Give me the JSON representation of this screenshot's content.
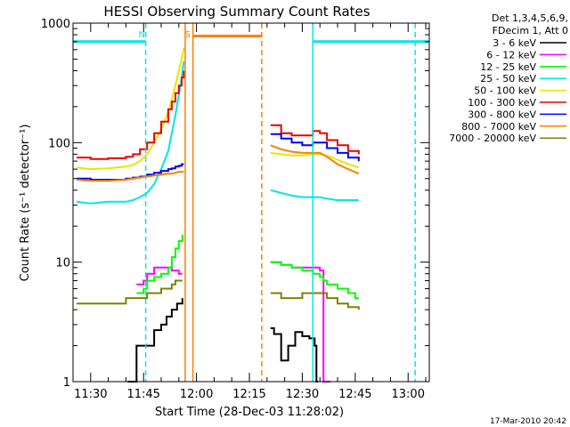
{
  "chart_data": {
    "type": "line",
    "title": "HESSI Observing Summary Count Rates",
    "xlabel": "Start Time (28-Dec-03 11:28:02)",
    "ylabel": "Count Rate (s⁻¹ detector⁻¹)",
    "y_scale": "log",
    "ylim": [
      1,
      1000
    ],
    "yticks": [
      1,
      10,
      100,
      1000
    ],
    "ytick_labels": [
      "1",
      "10",
      "100",
      "1000"
    ],
    "xlim_minutes": [
      685,
      786
    ],
    "xticks_minutes": [
      690,
      705,
      720,
      735,
      750,
      765,
      780
    ],
    "xtick_labels": [
      "11:30",
      "11:45",
      "12:00",
      "12:15",
      "12:30",
      "12:45",
      "13:00"
    ],
    "grid": false,
    "legend_position": "right",
    "legend_header": [
      "Det 1,3,4,5,6,9,",
      "FDecim 1, Att 0"
    ],
    "footer": "17-Mar-2010 20:42",
    "annotations": [
      {
        "text": "N",
        "x_minutes": 704.5,
        "color": "#00e6e6"
      },
      {
        "text": "S",
        "x_minutes": 717.5,
        "color": "#ff7f00"
      }
    ],
    "markers": [
      {
        "type": "night",
        "color": "#00e6e6",
        "x_minutes": 705.6,
        "style": "dashed"
      },
      {
        "type": "night",
        "color": "#00e6e6",
        "x_minutes": 753.0,
        "style": "solid"
      },
      {
        "type": "night",
        "color": "#00e6e6",
        "x_minutes": 782.0,
        "style": "dashed"
      },
      {
        "type": "saa",
        "color": "#ff7f00",
        "x_minutes": 716.8,
        "style": "solid"
      },
      {
        "type": "saa",
        "color": "#ff7f00",
        "x_minutes": 719.0,
        "style": "solid"
      },
      {
        "type": "saa",
        "color": "#ff7f00",
        "x_minutes": 738.5,
        "style": "dashed"
      }
    ],
    "bars": [
      {
        "color": "#00e6e6",
        "y": 700,
        "from_minutes": 685,
        "to_minutes": 705.6
      },
      {
        "color": "#00e6e6",
        "y": 700,
        "from_minutes": 753.0,
        "to_minutes": 786
      },
      {
        "color": "#ff7f00",
        "y": 780,
        "from_minutes": 719.0,
        "to_minutes": 738.5
      }
    ],
    "series": [
      {
        "name": "3 - 6 keV",
        "color": "#000000",
        "stepped": true,
        "segments": [
          {
            "x": [
              700.5,
              703,
              706,
              708,
              710,
              711.5,
              713,
              714.5,
              716
            ],
            "y": [
              1,
              2,
              2,
              2.7,
              3,
              3.5,
              4,
              4.5,
              5
            ]
          },
          {
            "x": [
              741,
              742,
              744,
              746,
              748,
              750,
              752,
              753.5,
              754,
              754.5
            ],
            "y": [
              2.8,
              2.5,
              1.5,
              2,
              2.6,
              2.4,
              2.3,
              2,
              1,
              1
            ]
          }
        ]
      },
      {
        "name": "6 - 12 keV",
        "color": "#ff00ff",
        "stepped": true,
        "segments": [
          {
            "x": [
              703,
              705,
              706,
              708,
              711,
              713,
              715,
              716
            ],
            "y": [
              6.5,
              7,
              8,
              9,
              9,
              8.5,
              8,
              8
            ]
          },
          {
            "x": [
              741,
              744,
              747,
              750,
              753,
              755,
              756,
              757,
              758
            ],
            "y": [
              10,
              9.5,
              9,
              9,
              9,
              8.5,
              1,
              1,
              1
            ]
          }
        ]
      },
      {
        "name": "12 - 25 keV",
        "color": "#00ff00",
        "stepped": true,
        "segments": [
          {
            "x": [
              703,
              705,
              706,
              708,
              710,
              712,
              713,
              714,
              715,
              716
            ],
            "y": [
              5.5,
              6,
              7,
              7.5,
              8,
              9,
              11,
              13,
              15,
              17
            ]
          },
          {
            "x": [
              741,
              744,
              747,
              750,
              753,
              755,
              756,
              757,
              760,
              763,
              765,
              766
            ],
            "y": [
              10,
              9.5,
              9,
              8.5,
              8,
              7.5,
              7,
              6.5,
              6,
              5.5,
              5,
              5
            ]
          }
        ]
      },
      {
        "name": "25 - 50 keV",
        "color": "#00e6e6",
        "stepped": false,
        "segments": [
          {
            "x": [
              686,
              690,
              695,
              700,
              702,
              704,
              706,
              708,
              710,
              712,
              713,
              714,
              715,
              715.8,
              716.4
            ],
            "y": [
              32,
              31,
              32,
              32,
              33,
              35,
              38,
              45,
              60,
              85,
              120,
              170,
              250,
              350,
              480
            ]
          },
          {
            "x": [
              741,
              744,
              747,
              750,
              753,
              755,
              757,
              760,
              763,
              766
            ],
            "y": [
              40,
              38,
              36,
              35,
              35,
              35,
              34,
              33,
              33,
              33
            ]
          }
        ]
      },
      {
        "name": "50 - 100 keV",
        "color": "#e6e600",
        "stepped": false,
        "segments": [
          {
            "x": [
              686,
              690,
              695,
              700,
              702,
              704,
              706,
              708,
              710,
              712,
              713,
              714,
              715,
              715.8,
              716.4
            ],
            "y": [
              62,
              60,
              61,
              63,
              65,
              70,
              80,
              100,
              130,
              180,
              230,
              300,
              400,
              500,
              620
            ]
          },
          {
            "x": [
              741,
              744,
              747,
              750,
              753,
              755,
              757,
              760,
              763,
              766
            ],
            "y": [
              82,
              80,
              78,
              78,
              80,
              80,
              78,
              72,
              66,
              62
            ]
          }
        ]
      },
      {
        "name": "100 - 300 keV",
        "color": "#ee0000",
        "stepped": true,
        "segments": [
          {
            "x": [
              686,
              690,
              695,
              700,
              702,
              704,
              706,
              708,
              710,
              712,
              713,
              714,
              715,
              715.8,
              716.4
            ],
            "y": [
              75,
              73,
              74,
              76,
              80,
              88,
              100,
              120,
              150,
              190,
              220,
              260,
              300,
              350,
              400
            ]
          },
          {
            "x": [
              741,
              744,
              747,
              750,
              753,
              755,
              757,
              760,
              763,
              766
            ],
            "y": [
              140,
              120,
              115,
              115,
              125,
              120,
              105,
              95,
              85,
              80
            ]
          }
        ]
      },
      {
        "name": "300 - 800 keV",
        "color": "#0000ff",
        "stepped": true,
        "segments": [
          {
            "x": [
              686,
              690,
              695,
              700,
              702,
              704,
              706,
              708,
              710,
              712,
              713,
              714,
              715,
              715.8,
              716.4
            ],
            "y": [
              50,
              49,
              49,
              50,
              51,
              52,
              54,
              56,
              58,
              60,
              61,
              63,
              64,
              66,
              66
            ]
          },
          {
            "x": [
              741,
              744,
              747,
              750,
              753,
              755,
              757,
              760,
              763,
              766
            ],
            "y": [
              118,
              108,
              100,
              95,
              100,
              100,
              90,
              82,
              75,
              70
            ]
          }
        ]
      },
      {
        "name": "800 - 7000 keV",
        "color": "#ff7f00",
        "stepped": false,
        "segments": [
          {
            "x": [
              686,
              690,
              695,
              700,
              702,
              704,
              706,
              708,
              710,
              712,
              713,
              714,
              715,
              715.8,
              716.4
            ],
            "y": [
              49,
              48,
              48,
              49,
              50,
              51,
              52,
              53,
              54,
              55,
              55,
              56,
              57,
              57,
              57
            ]
          },
          {
            "x": [
              741,
              744,
              747,
              750,
              753,
              755,
              757,
              760,
              763,
              766
            ],
            "y": [
              95,
              88,
              84,
              82,
              82,
              82,
              76,
              66,
              60,
              55
            ]
          }
        ]
      },
      {
        "name": "7000 - 20000 keV",
        "color": "#808000",
        "stepped": true,
        "segments": [
          {
            "x": [
              686,
              690,
              695,
              700,
              702,
              704,
              706,
              708,
              710,
              712,
              713,
              714,
              715,
              716
            ],
            "y": [
              4.5,
              4.5,
              4.5,
              5,
              5,
              5,
              5.5,
              5.5,
              6,
              6,
              6.5,
              7,
              7,
              7
            ]
          },
          {
            "x": [
              741,
              744,
              747,
              750,
              753,
              755,
              757,
              760,
              763,
              766
            ],
            "y": [
              5.5,
              5,
              5,
              5.5,
              5.5,
              5.5,
              5,
              4.5,
              4.2,
              4
            ]
          }
        ]
      }
    ]
  }
}
